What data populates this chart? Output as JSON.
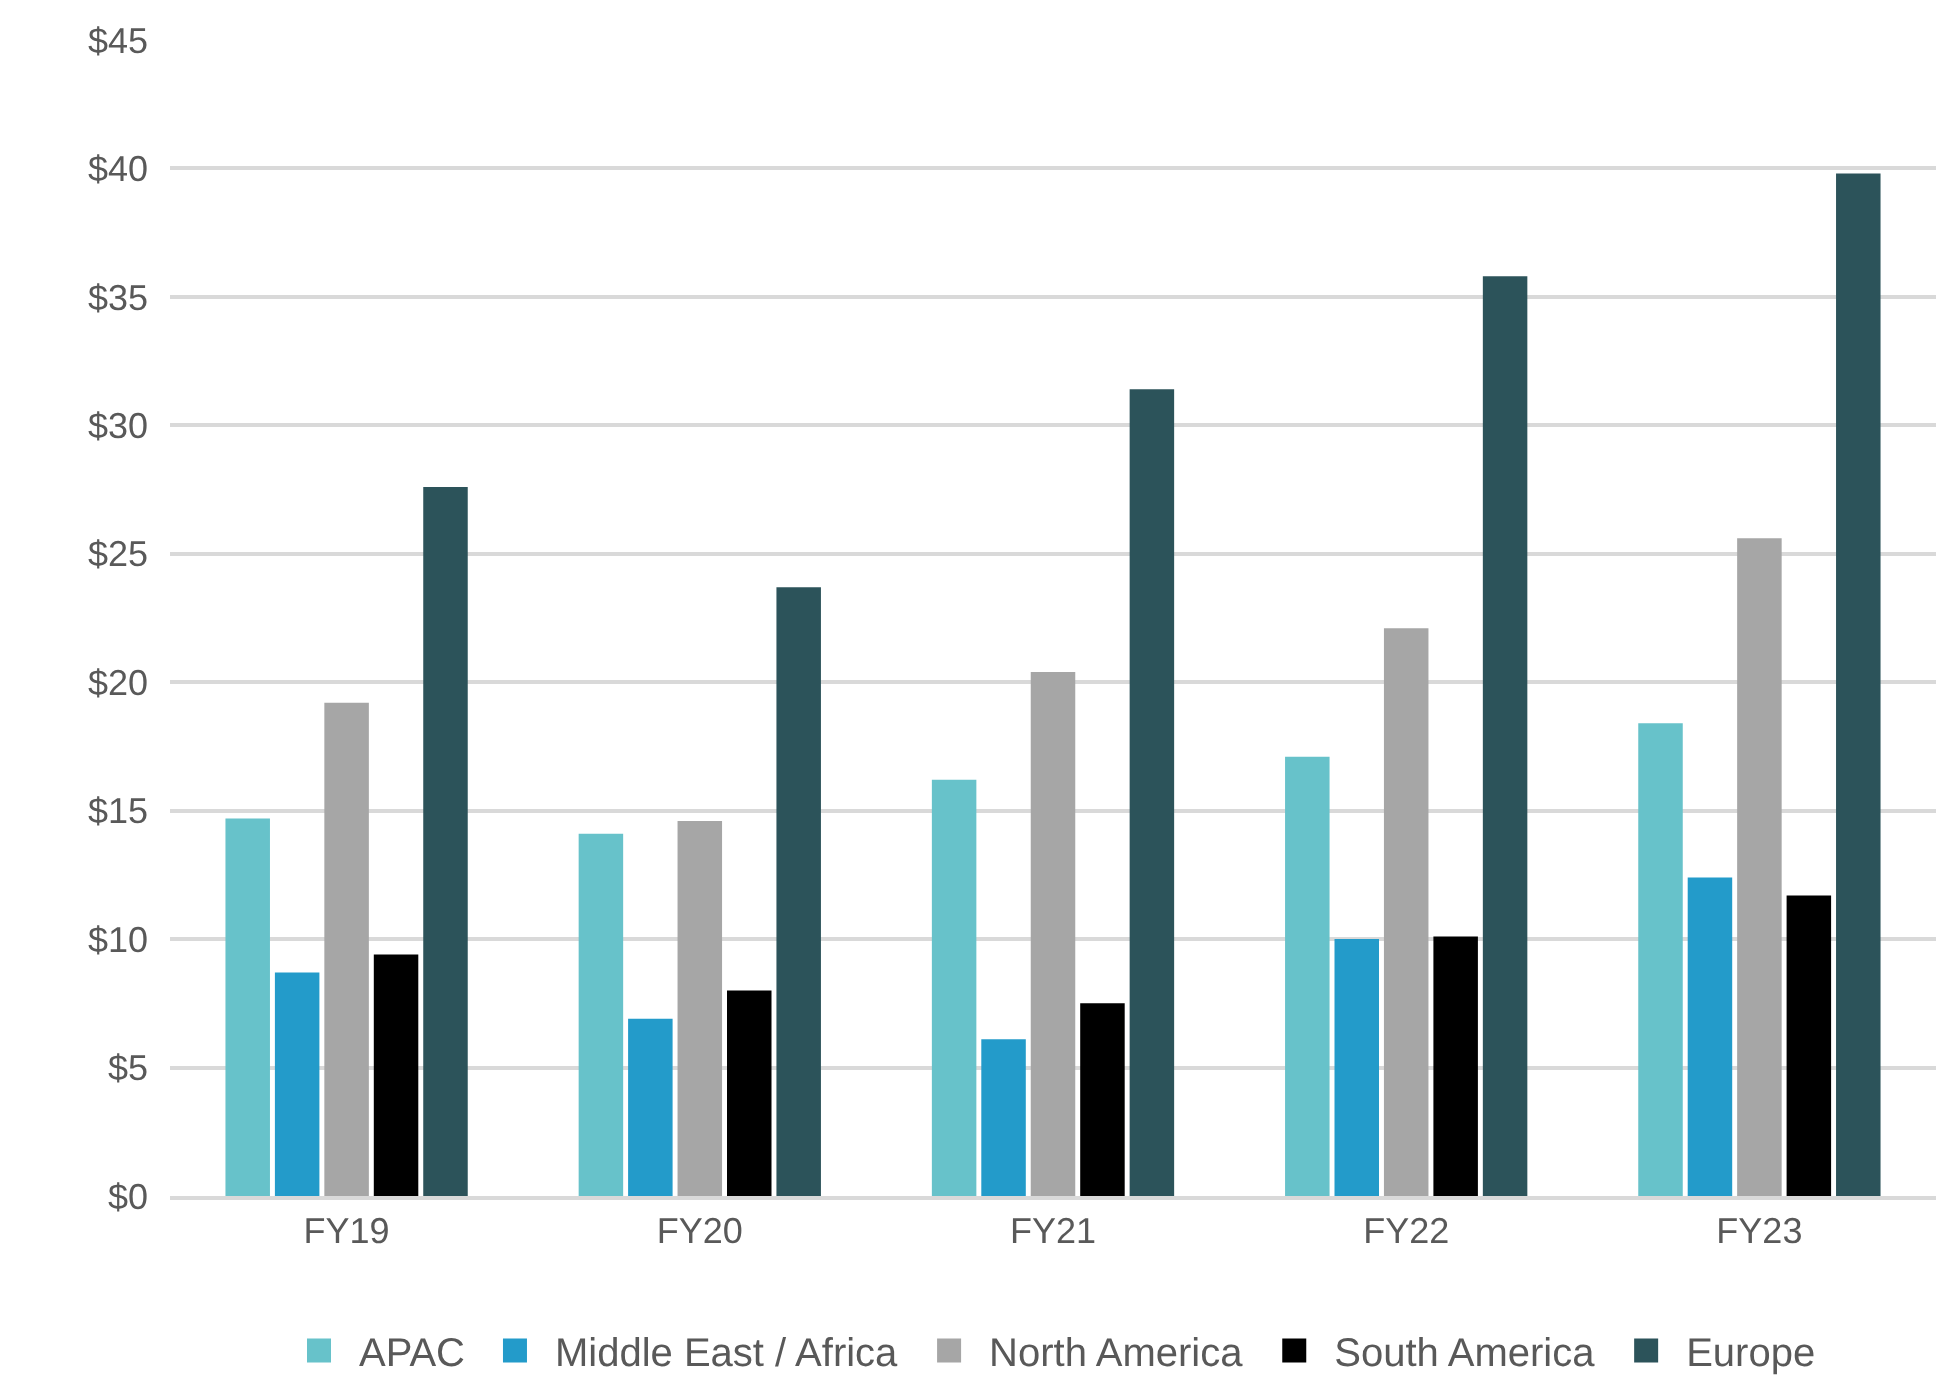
{
  "chart_data": {
    "type": "bar",
    "categories": [
      "FY19",
      "FY20",
      "FY21",
      "FY22",
      "FY23"
    ],
    "series": [
      {
        "name": "APAC",
        "color": "#67c2ca",
        "values": [
          14.7,
          14.1,
          16.2,
          17.1,
          18.4
        ]
      },
      {
        "name": "Middle East / Africa",
        "color": "#239bca",
        "values": [
          8.7,
          6.9,
          6.1,
          10.0,
          12.4
        ]
      },
      {
        "name": "North America",
        "color": "#a6a6a6",
        "values": [
          19.2,
          14.6,
          20.4,
          22.1,
          25.6
        ]
      },
      {
        "name": "South America",
        "color": "#000000",
        "values": [
          9.4,
          8.0,
          7.5,
          10.1,
          11.7
        ]
      },
      {
        "name": "Europe",
        "color": "#2c535a",
        "values": [
          27.6,
          23.7,
          31.4,
          35.8,
          39.8
        ]
      }
    ],
    "ylim": [
      0,
      45
    ],
    "yticks": [
      {
        "value": 0,
        "label": "$0"
      },
      {
        "value": 5,
        "label": "$5"
      },
      {
        "value": 10,
        "label": "$10"
      },
      {
        "value": 15,
        "label": "$15"
      },
      {
        "value": 20,
        "label": "$20"
      },
      {
        "value": 25,
        "label": "$25"
      },
      {
        "value": 30,
        "label": "$30"
      },
      {
        "value": 35,
        "label": "$35"
      },
      {
        "value": 40,
        "label": "$40"
      },
      {
        "value": 45,
        "label": "$45"
      }
    ],
    "grid": "y",
    "legend": "bottom"
  }
}
